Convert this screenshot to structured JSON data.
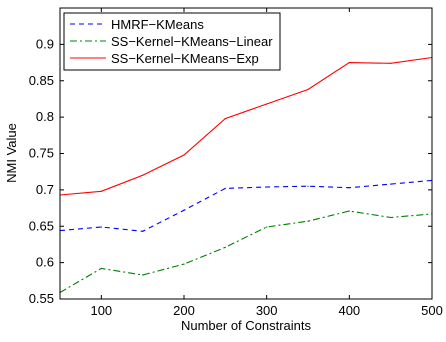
{
  "chart_data": {
    "type": "line",
    "title": "",
    "xlabel": "Number of Constraints",
    "ylabel": "NMI Value",
    "xlim": [
      50,
      500
    ],
    "ylim": [
      0.55,
      0.95
    ],
    "xticks": [
      100,
      200,
      300,
      400,
      500
    ],
    "yticks": [
      0.55,
      0.6,
      0.65,
      0.7,
      0.75,
      0.8,
      0.85,
      0.9
    ],
    "grid": false,
    "legend_position": "top-left",
    "x": [
      50,
      100,
      150,
      200,
      250,
      300,
      350,
      400,
      450,
      500
    ],
    "series": [
      {
        "name": "HMRF−KMeans",
        "color": "#0000ff",
        "dash": "dashed",
        "values": [
          0.644,
          0.649,
          0.643,
          0.672,
          0.702,
          0.704,
          0.705,
          0.703,
          0.708,
          0.713
        ]
      },
      {
        "name": "SS−Kernel−KMeans−Linear",
        "color": "#008000",
        "dash": "dashdot",
        "values": [
          0.559,
          0.592,
          0.583,
          0.598,
          0.621,
          0.649,
          0.657,
          0.671,
          0.662,
          0.667
        ]
      },
      {
        "name": "SS−Kernel−KMeans−Exp",
        "color": "#ff0000",
        "dash": "solid",
        "values": [
          0.693,
          0.698,
          0.72,
          0.748,
          0.798,
          0.818,
          0.838,
          0.875,
          0.874,
          0.882
        ]
      }
    ]
  }
}
